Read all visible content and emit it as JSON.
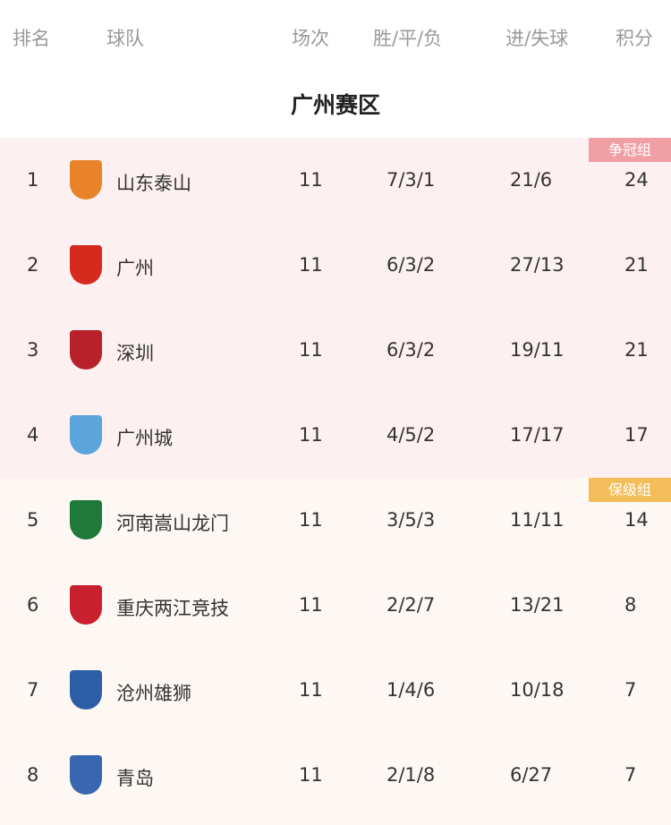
{
  "header": {
    "rank": "排名",
    "team": "球队",
    "played": "场次",
    "wdl": "胜/平/负",
    "goals": "进/失球",
    "points": "积分"
  },
  "title": "广州赛区",
  "groups": {
    "championship": {
      "label": "争冠组",
      "color": "#f0a0a4"
    },
    "relegation": {
      "label": "保级组",
      "color": "#f3be5a"
    }
  },
  "rows": [
    {
      "rank": "1",
      "team": "山东泰山",
      "played": "11",
      "wdl": "7/3/1",
      "goals": "21/6",
      "points": "24",
      "logo_color": "#e8832a"
    },
    {
      "rank": "2",
      "team": "广州",
      "played": "11",
      "wdl": "6/3/2",
      "goals": "27/13",
      "points": "21",
      "logo_color": "#d62a1e"
    },
    {
      "rank": "3",
      "team": "深圳",
      "played": "11",
      "wdl": "6/3/2",
      "goals": "19/11",
      "points": "21",
      "logo_color": "#b8202a"
    },
    {
      "rank": "4",
      "team": "广州城",
      "played": "11",
      "wdl": "4/5/2",
      "goals": "17/17",
      "points": "17",
      "logo_color": "#5aa6dc"
    },
    {
      "rank": "5",
      "team": "河南嵩山龙门",
      "played": "11",
      "wdl": "3/5/3",
      "goals": "11/11",
      "points": "14",
      "logo_color": "#1f7a3a"
    },
    {
      "rank": "6",
      "team": "重庆两江竞技",
      "played": "11",
      "wdl": "2/2/7",
      "goals": "13/21",
      "points": "8",
      "logo_color": "#c8202c"
    },
    {
      "rank": "7",
      "team": "沧州雄狮",
      "played": "11",
      "wdl": "1/4/6",
      "goals": "10/18",
      "points": "7",
      "logo_color": "#2d5ea8"
    },
    {
      "rank": "8",
      "team": "青岛",
      "played": "11",
      "wdl": "2/1/8",
      "goals": "6/27",
      "points": "7",
      "logo_color": "#3866b0"
    }
  ]
}
